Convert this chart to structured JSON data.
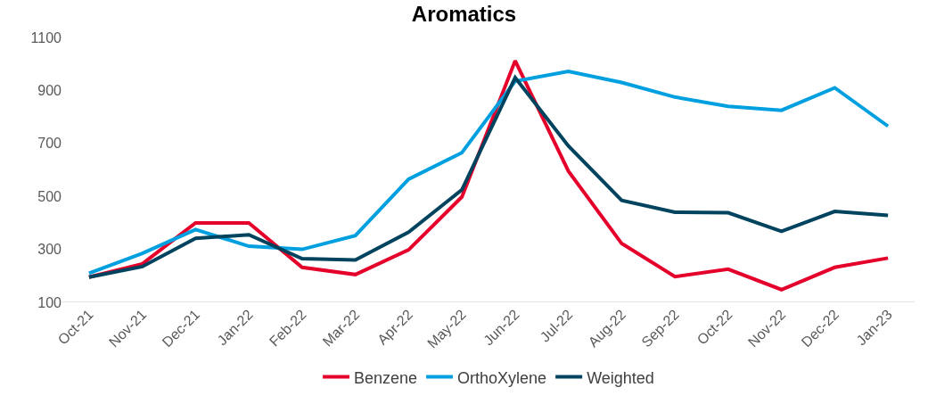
{
  "chart_data": {
    "type": "line",
    "title": "Aromatics",
    "categories": [
      "Oct-21",
      "Nov-21",
      "Dec-21",
      "Jan-22",
      "Feb-22",
      "Mar-22",
      "Apr-22",
      "May-22",
      "Jun-22",
      "Jul-22",
      "Aug-22",
      "Sep-22",
      "Oct-22",
      "Nov-22",
      "Dec-22",
      "Jan-23"
    ],
    "series": [
      {
        "name": "Benzene",
        "color": "#e4002b",
        "values": [
          195,
          245,
          400,
          400,
          232,
          205,
          298,
          498,
          1012,
          595,
          322,
          197,
          225,
          148,
          232,
          267
        ]
      },
      {
        "name": "OrthoXylene",
        "color": "#00a0e0",
        "values": [
          210,
          285,
          375,
          312,
          300,
          352,
          565,
          665,
          935,
          972,
          930,
          875,
          840,
          825,
          910,
          765
        ]
      },
      {
        "name": "Weighted",
        "color": "#00435e",
        "values": [
          195,
          235,
          342,
          355,
          265,
          260,
          365,
          525,
          948,
          690,
          485,
          440,
          438,
          368,
          443,
          428
        ]
      }
    ],
    "ylim": [
      100,
      1100
    ],
    "yticks": [
      100,
      300,
      500,
      700,
      900,
      1100
    ],
    "legend": "bottom",
    "marker": "none",
    "line_style": "solid"
  }
}
